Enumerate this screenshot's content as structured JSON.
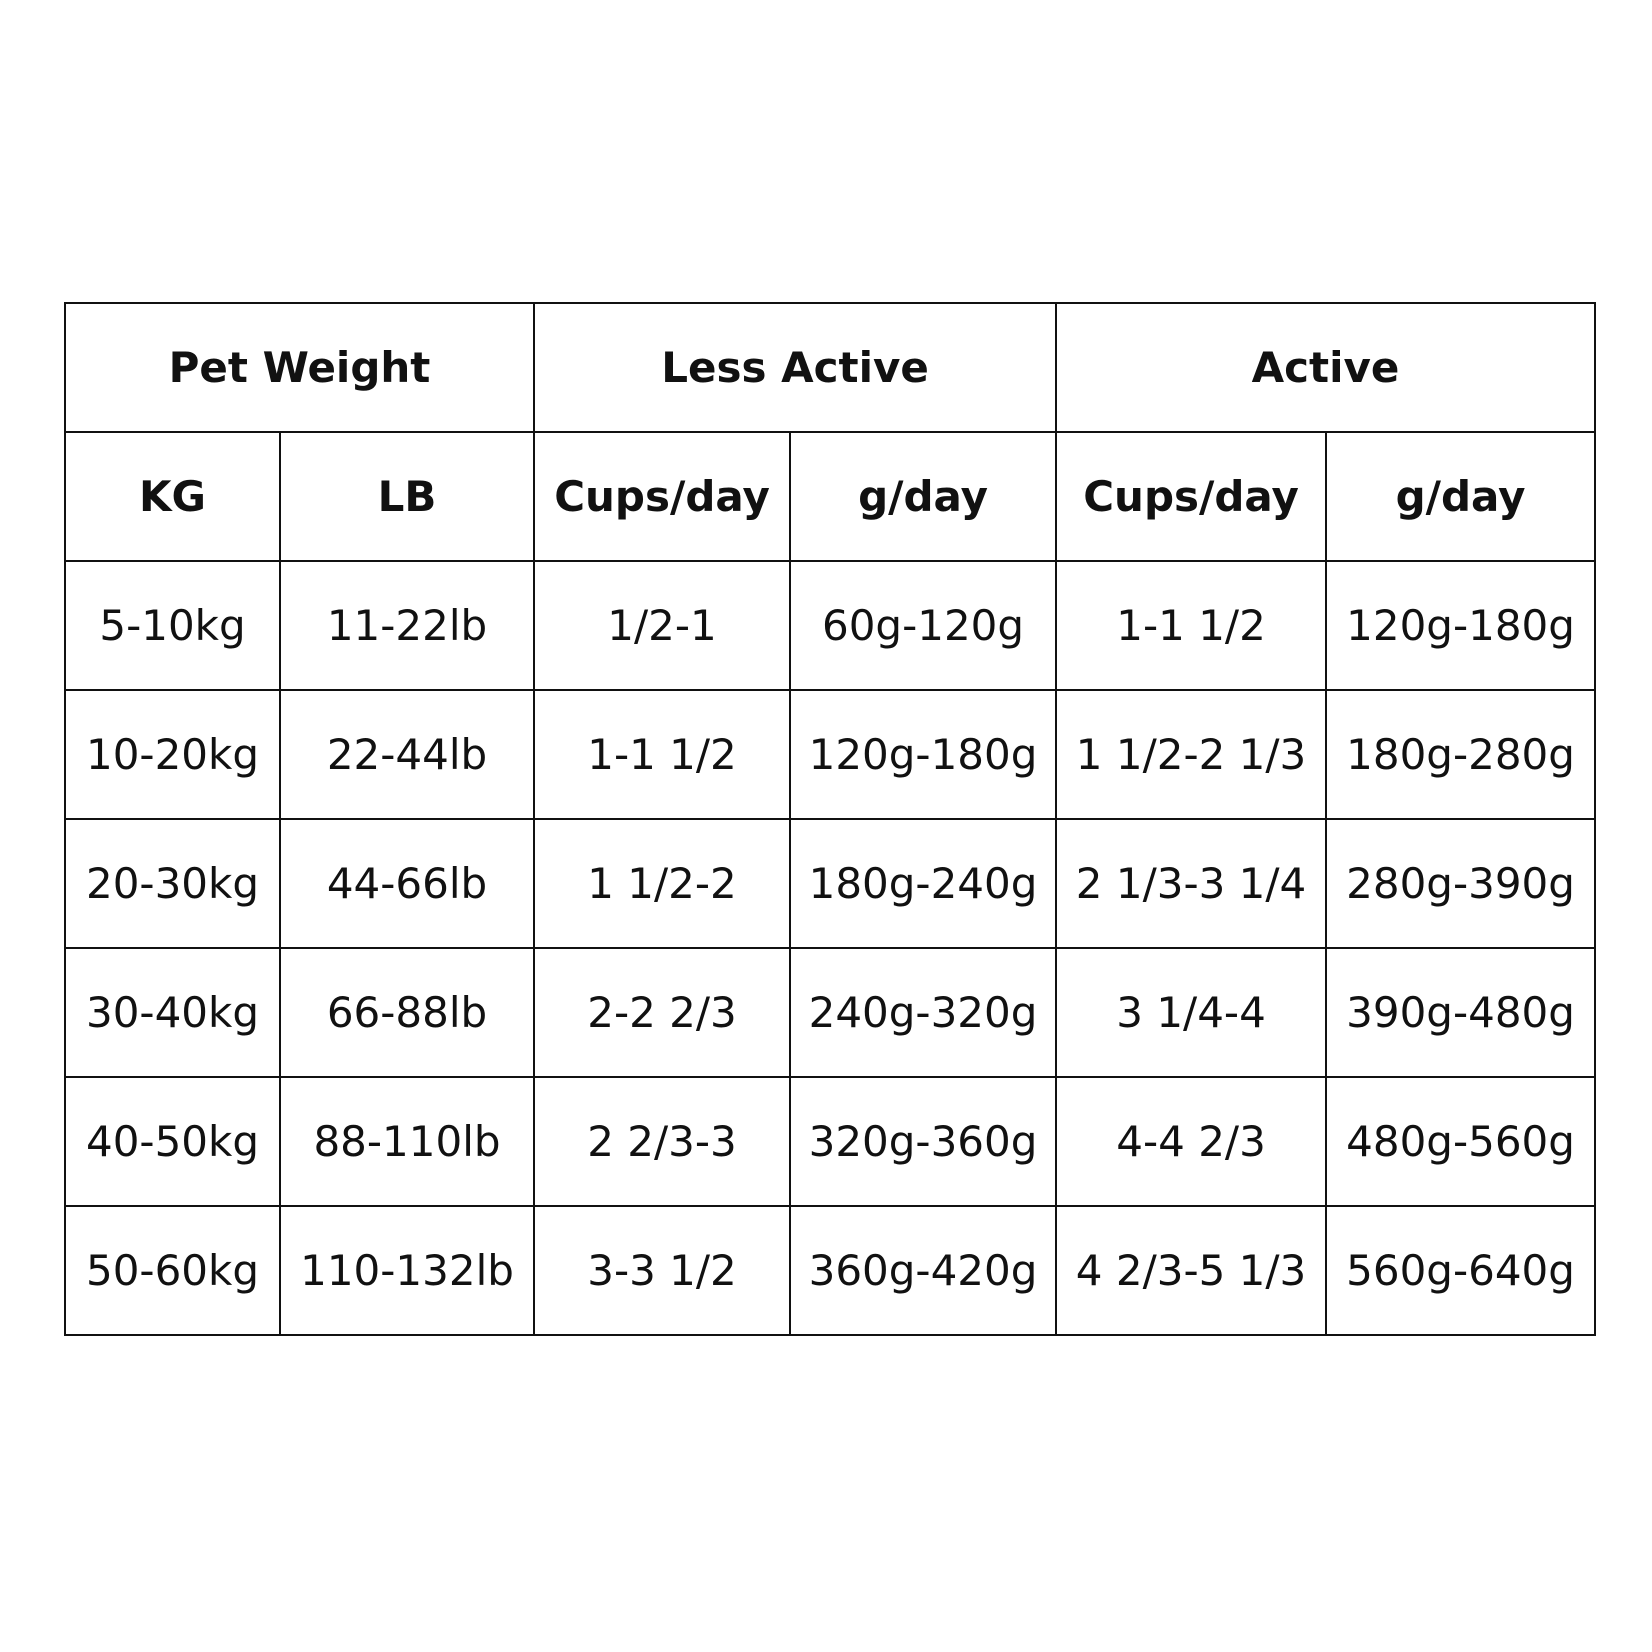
{
  "table": {
    "group_headers": [
      {
        "label": "Pet Weight",
        "colspan": 2
      },
      {
        "label": "Less Active",
        "colspan": 2
      },
      {
        "label": "Active",
        "colspan": 2
      }
    ],
    "column_headers": [
      "KG",
      "LB",
      "Cups/day",
      "g/day",
      "Cups/day",
      "g/day"
    ],
    "rows": [
      [
        "5-10kg",
        "11-22lb",
        "1/2-1",
        "60g-120g",
        "1-1 1/2",
        "120g-180g"
      ],
      [
        "10-20kg",
        "22-44lb",
        "1-1 1/2",
        "120g-180g",
        "1 1/2-2 1/3",
        "180g-280g"
      ],
      [
        "20-30kg",
        "44-66lb",
        "1 1/2-2",
        "180g-240g",
        "2 1/3-3 1/4",
        "280g-390g"
      ],
      [
        "30-40kg",
        "66-88lb",
        "2-2 2/3",
        "240g-320g",
        "3 1/4-4",
        "390g-480g"
      ],
      [
        "40-50kg",
        "88-110lb",
        "2 2/3-3",
        "320g-360g",
        "4-4 2/3",
        "480g-560g"
      ],
      [
        "50-60kg",
        "110-132lb",
        "3-3 1/2",
        "360g-420g",
        "4 2/3-5 1/3",
        "560g-640g"
      ]
    ]
  }
}
